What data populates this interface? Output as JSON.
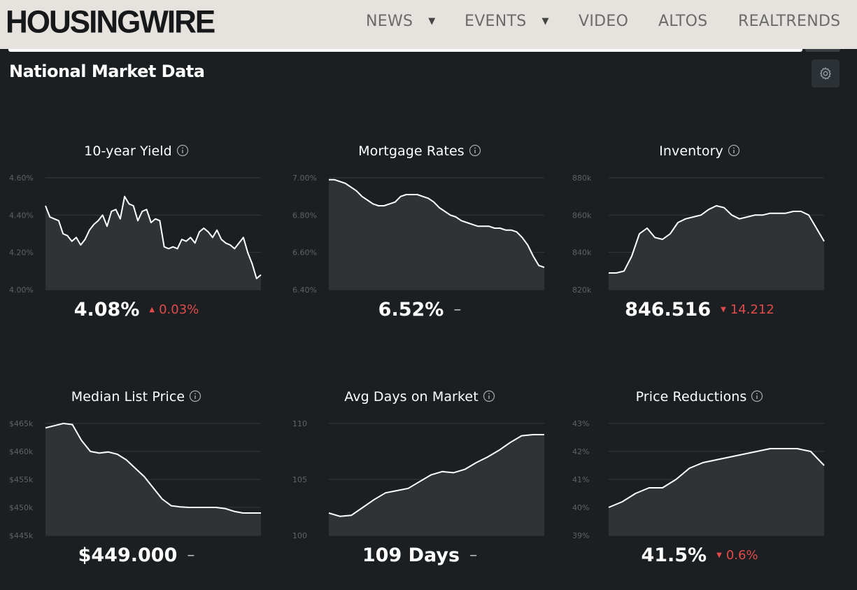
{
  "header": {
    "logo": "HOUSINGWIRE",
    "nav": [
      {
        "label": "NEWS",
        "has_dropdown": true
      },
      {
        "label": "EVENTS",
        "has_dropdown": true
      },
      {
        "label": "VIDEO",
        "has_dropdown": false
      },
      {
        "label": "ALTOS",
        "has_dropdown": false
      },
      {
        "label": "REALTRENDS",
        "has_dropdown": false
      }
    ],
    "caret": "▼"
  },
  "section": {
    "title": "National Market Data",
    "settings_icon": "gear-icon"
  },
  "colors": {
    "background": "#1b1f21",
    "header_bg": "#e6e3de",
    "area_fill": "#2f3336",
    "line": "#ffffff",
    "negative": "#e14b4b",
    "grid": "#33383c"
  },
  "cards": [
    {
      "title": "10-year Yield",
      "value": "4.08%",
      "change": "0.03%",
      "direction": "up",
      "dash": ""
    },
    {
      "title": "Mortgage Rates",
      "value": "6.52%",
      "change": "",
      "direction": "",
      "dash": "–"
    },
    {
      "title": "Inventory",
      "value": "846.516",
      "change": "14.212",
      "direction": "down",
      "dash": ""
    },
    {
      "title": "Median List Price",
      "value": "$449.000",
      "change": "",
      "direction": "",
      "dash": "–"
    },
    {
      "title": "Avg Days on Market",
      "value": "109 Days",
      "change": "",
      "direction": "",
      "dash": "–"
    },
    {
      "title": "Price Reductions",
      "value": "41.5%",
      "change": "0.6%",
      "direction": "down",
      "dash": ""
    }
  ],
  "chart_data": [
    {
      "type": "area",
      "title": "10-year Yield",
      "y_ticks": [
        "4.60%",
        "4.40%",
        "4.20%",
        "4.00%"
      ],
      "ylim": [
        4.0,
        4.6
      ],
      "values": [
        4.45,
        4.39,
        4.38,
        4.37,
        4.3,
        4.29,
        4.26,
        4.28,
        4.24,
        4.27,
        4.32,
        4.35,
        4.37,
        4.4,
        4.34,
        4.42,
        4.43,
        4.38,
        4.5,
        4.46,
        4.45,
        4.37,
        4.42,
        4.43,
        4.36,
        4.38,
        4.37,
        4.23,
        4.22,
        4.23,
        4.22,
        4.27,
        4.26,
        4.28,
        4.25,
        4.31,
        4.33,
        4.31,
        4.28,
        4.32,
        4.27,
        4.25,
        4.24,
        4.22,
        4.25,
        4.28,
        4.2,
        4.14,
        4.06,
        4.08
      ]
    },
    {
      "type": "area",
      "title": "Mortgage Rates",
      "y_ticks": [
        "7.00%",
        "6.80%",
        "6.60%",
        "6.40%"
      ],
      "ylim": [
        6.4,
        7.0
      ],
      "values": [
        6.99,
        6.99,
        6.98,
        6.97,
        6.95,
        6.93,
        6.9,
        6.88,
        6.86,
        6.85,
        6.85,
        6.86,
        6.87,
        6.9,
        6.91,
        6.91,
        6.91,
        6.9,
        6.89,
        6.87,
        6.84,
        6.82,
        6.8,
        6.79,
        6.77,
        6.76,
        6.75,
        6.74,
        6.74,
        6.74,
        6.73,
        6.73,
        6.72,
        6.72,
        6.71,
        6.68,
        6.64,
        6.58,
        6.53,
        6.52
      ]
    },
    {
      "type": "area",
      "title": "Inventory",
      "y_ticks": [
        "880k",
        "860k",
        "840k",
        "820k"
      ],
      "ylim": [
        820,
        880
      ],
      "values": [
        829,
        829,
        830,
        838,
        850,
        853,
        848,
        847,
        850,
        856,
        858,
        859,
        860,
        863,
        865,
        864,
        860,
        858,
        859,
        860,
        860,
        861,
        861,
        861,
        862,
        862,
        860,
        853,
        846
      ]
    },
    {
      "type": "area",
      "title": "Median List Price",
      "y_ticks": [
        "$465k",
        "$460k",
        "$455k",
        "$450k",
        "$445k"
      ],
      "ylim": [
        445,
        465
      ],
      "values": [
        464.2,
        464.6,
        465.0,
        464.8,
        462.0,
        460.0,
        459.7,
        459.9,
        459.5,
        458.5,
        457.0,
        455.5,
        453.5,
        451.5,
        450.3,
        450.1,
        450.0,
        450.0,
        450.0,
        450.0,
        449.8,
        449.3,
        449.0,
        449.0,
        449.0
      ]
    },
    {
      "type": "area",
      "title": "Avg Days on Market",
      "y_ticks": [
        "110",
        "105",
        "100"
      ],
      "ylim": [
        100,
        110
      ],
      "values": [
        102.0,
        101.7,
        101.8,
        102.5,
        103.2,
        103.8,
        104.0,
        104.2,
        104.8,
        105.4,
        105.7,
        105.6,
        105.9,
        106.5,
        107.0,
        107.6,
        108.3,
        108.9,
        109.0,
        109.0
      ]
    },
    {
      "type": "area",
      "title": "Price Reductions",
      "y_ticks": [
        "43%",
        "42%",
        "41%",
        "40%",
        "39%"
      ],
      "ylim": [
        39,
        43
      ],
      "values": [
        40.0,
        40.2,
        40.5,
        40.7,
        40.7,
        41.0,
        41.4,
        41.6,
        41.7,
        41.8,
        41.9,
        42.0,
        42.1,
        42.1,
        42.1,
        42.0,
        41.5
      ]
    }
  ]
}
